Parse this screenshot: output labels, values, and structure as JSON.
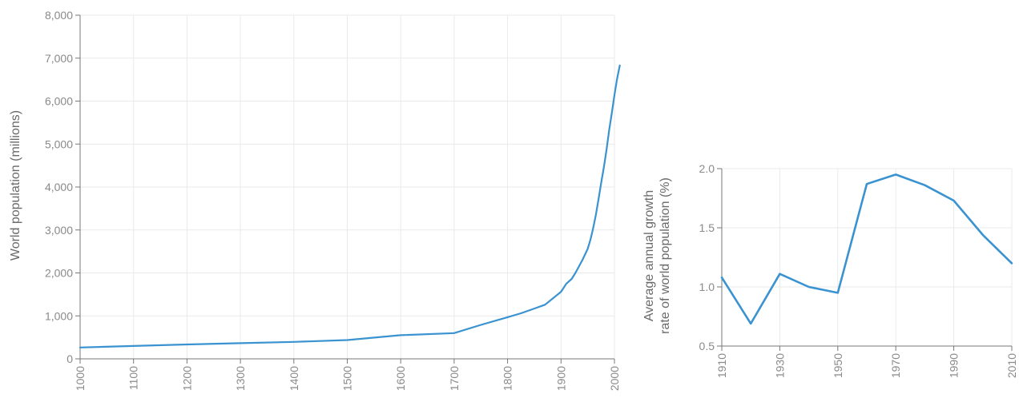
{
  "colors": {
    "line": "#3a93d0",
    "grid": "#e9e9e9",
    "text": "#8a8a8a"
  },
  "chart_data": [
    {
      "type": "line",
      "ylabel": "World population (millions)",
      "xlabel": "",
      "xlim": [
        1000,
        2000
      ],
      "ylim": [
        0,
        8000
      ],
      "grid": true,
      "x_ticks": [
        "1000",
        "1100",
        "1200",
        "1300",
        "1400",
        "1500",
        "1600",
        "1700",
        "1800",
        "1900",
        "2000"
      ],
      "y_ticks": [
        "0",
        "1,000",
        "2,000",
        "3,000",
        "4,000",
        "5,000",
        "6,000",
        "7,000",
        "8,000"
      ],
      "series": [
        {
          "x": [
            1000,
            1100,
            1200,
            1300,
            1400,
            1500,
            1600,
            1700,
            1750,
            1800,
            1825,
            1850,
            1870,
            1900,
            1910,
            1920,
            1927,
            1940,
            1950,
            1955,
            1960,
            1965,
            1970,
            1975,
            1980,
            1985,
            1990,
            1995,
            2000,
            2005,
            2010
          ],
          "values": [
            265,
            300,
            335,
            365,
            395,
            438,
            550,
            600,
            790,
            970,
            1060,
            1170,
            1260,
            1560,
            1750,
            1860,
            2000,
            2300,
            2560,
            2770,
            3030,
            3340,
            3700,
            4080,
            4450,
            4850,
            5310,
            5720,
            6140,
            6520,
            6830
          ]
        }
      ]
    },
    {
      "type": "line",
      "ylabel": "Average annual growth rate of world population (%)",
      "ylabel_lines": [
        "Average annual growth",
        "rate of world population (%)"
      ],
      "xlabel": "",
      "xlim": [
        1910,
        2010
      ],
      "ylim": [
        0.5,
        2.0
      ],
      "grid": true,
      "x_ticks": [
        "1910",
        "1930",
        "1950",
        "1970",
        "1990",
        "2010"
      ],
      "y_ticks": [
        "0.5",
        "1.0",
        "1.5",
        "2.0"
      ],
      "series": [
        {
          "x": [
            1910,
            1920,
            1930,
            1940,
            1950,
            1960,
            1970,
            1980,
            1990,
            2000,
            2010
          ],
          "values": [
            1.08,
            0.69,
            1.11,
            1.0,
            0.95,
            1.87,
            1.95,
            1.86,
            1.73,
            1.44,
            1.2
          ]
        }
      ]
    }
  ]
}
